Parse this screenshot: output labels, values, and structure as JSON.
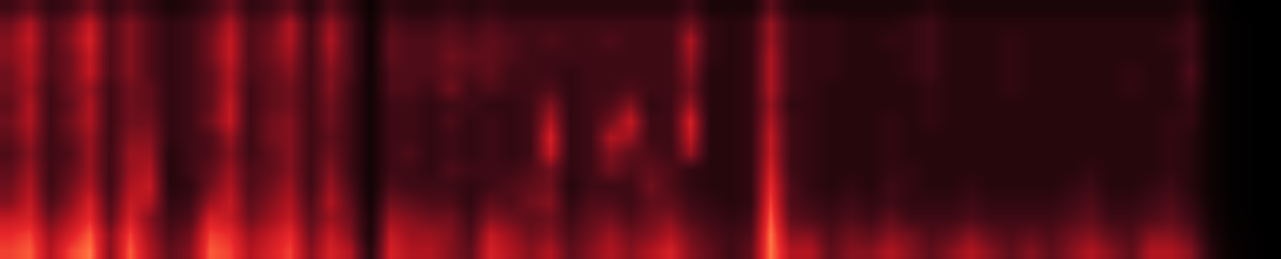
{
  "chart_data": {
    "type": "heatmap",
    "tick_labels": false,
    "color_range": [
      0,
      1
    ],
    "cells": [
      [
        0.8,
        0.85,
        0.6,
        0.8,
        0.9,
        0.5,
        0.85,
        0.6,
        0.4,
        0.5,
        0.85,
        0.8,
        0.6,
        0.7,
        0.8,
        0.5,
        0.7,
        0.6,
        0.2,
        0.7,
        0.6,
        0.6,
        0.5,
        0.4,
        0.7,
        0.6,
        0.5,
        0.6,
        0.4,
        0.5,
        0.6,
        0.5,
        0.6,
        0.7,
        0.5,
        0.4,
        0.3,
        0.4,
        0.9,
        0.6,
        0.6,
        0.4,
        0.5,
        0.5,
        0.6,
        0.5,
        0.4,
        0.5,
        0.6,
        0.5,
        0.4,
        0.5,
        0.4,
        0.5,
        0.6,
        0.5,
        0.4,
        0.6,
        0.6,
        0.5,
        0.2,
        0.05,
        0.02,
        0.0
      ],
      [
        0.75,
        0.8,
        0.55,
        0.7,
        0.85,
        0.5,
        0.8,
        0.55,
        0.35,
        0.45,
        0.8,
        0.75,
        0.55,
        0.65,
        0.75,
        0.45,
        0.65,
        0.5,
        0.15,
        0.65,
        0.55,
        0.55,
        0.5,
        0.35,
        0.65,
        0.55,
        0.45,
        0.5,
        0.35,
        0.45,
        0.55,
        0.45,
        0.5,
        0.6,
        0.45,
        0.35,
        0.3,
        0.35,
        0.9,
        0.5,
        0.5,
        0.35,
        0.45,
        0.4,
        0.5,
        0.45,
        0.35,
        0.4,
        0.5,
        0.4,
        0.35,
        0.4,
        0.35,
        0.45,
        0.5,
        0.4,
        0.35,
        0.5,
        0.5,
        0.4,
        0.15,
        0.04,
        0.02,
        0.0
      ],
      [
        0.65,
        0.7,
        0.45,
        0.6,
        0.75,
        0.4,
        0.7,
        0.5,
        0.3,
        0.35,
        0.7,
        0.65,
        0.45,
        0.55,
        0.65,
        0.4,
        0.55,
        0.45,
        0.15,
        0.55,
        0.5,
        0.45,
        0.45,
        0.3,
        0.5,
        0.45,
        0.4,
        0.45,
        0.3,
        0.4,
        0.45,
        0.35,
        0.45,
        0.5,
        0.35,
        0.3,
        0.25,
        0.3,
        0.85,
        0.4,
        0.35,
        0.3,
        0.35,
        0.3,
        0.4,
        0.3,
        0.3,
        0.3,
        0.35,
        0.3,
        0.3,
        0.3,
        0.3,
        0.35,
        0.4,
        0.3,
        0.3,
        0.35,
        0.4,
        0.3,
        0.12,
        0.03,
        0.01,
        0.0
      ],
      [
        0.5,
        0.65,
        0.35,
        0.5,
        0.7,
        0.35,
        0.65,
        0.6,
        0.25,
        0.3,
        0.55,
        0.65,
        0.4,
        0.5,
        0.6,
        0.35,
        0.6,
        0.4,
        0.12,
        0.45,
        0.4,
        0.35,
        0.35,
        0.25,
        0.4,
        0.35,
        0.45,
        0.5,
        0.25,
        0.35,
        0.35,
        0.3,
        0.4,
        0.4,
        0.3,
        0.25,
        0.2,
        0.25,
        0.8,
        0.35,
        0.3,
        0.25,
        0.3,
        0.25,
        0.3,
        0.25,
        0.25,
        0.25,
        0.3,
        0.25,
        0.25,
        0.25,
        0.25,
        0.3,
        0.35,
        0.25,
        0.25,
        0.3,
        0.35,
        0.25,
        0.1,
        0.02,
        0.01,
        0.0
      ],
      [
        0.45,
        0.6,
        0.3,
        0.45,
        0.6,
        0.3,
        0.6,
        0.65,
        0.2,
        0.25,
        0.45,
        0.6,
        0.35,
        0.45,
        0.55,
        0.3,
        0.55,
        0.35,
        0.1,
        0.35,
        0.3,
        0.3,
        0.3,
        0.25,
        0.3,
        0.35,
        0.4,
        0.45,
        0.2,
        0.3,
        0.3,
        0.3,
        0.45,
        0.35,
        0.25,
        0.2,
        0.2,
        0.25,
        0.75,
        0.35,
        0.25,
        0.2,
        0.25,
        0.2,
        0.3,
        0.25,
        0.2,
        0.2,
        0.25,
        0.2,
        0.2,
        0.2,
        0.2,
        0.25,
        0.3,
        0.2,
        0.2,
        0.25,
        0.3,
        0.2,
        0.08,
        0.02,
        0.01,
        0.0
      ],
      [
        0.4,
        0.55,
        0.3,
        0.4,
        0.55,
        0.3,
        0.55,
        0.6,
        0.2,
        0.3,
        0.4,
        0.55,
        0.35,
        0.4,
        0.5,
        0.3,
        0.5,
        0.3,
        0.1,
        0.3,
        0.3,
        0.25,
        0.35,
        0.3,
        0.3,
        0.3,
        0.35,
        0.45,
        0.25,
        0.3,
        0.45,
        0.35,
        0.4,
        0.35,
        0.25,
        0.2,
        0.2,
        0.25,
        0.7,
        0.3,
        0.25,
        0.2,
        0.2,
        0.2,
        0.25,
        0.25,
        0.2,
        0.2,
        0.2,
        0.2,
        0.2,
        0.2,
        0.2,
        0.2,
        0.25,
        0.2,
        0.2,
        0.2,
        0.25,
        0.2,
        0.08,
        0.02,
        0.01,
        0.0
      ],
      [
        0.35,
        0.5,
        0.3,
        0.35,
        0.55,
        0.3,
        0.55,
        0.55,
        0.2,
        0.3,
        0.35,
        0.5,
        0.3,
        0.4,
        0.5,
        0.3,
        0.45,
        0.3,
        0.1,
        0.3,
        0.35,
        0.25,
        0.3,
        0.25,
        0.3,
        0.25,
        0.3,
        0.65,
        0.25,
        0.3,
        0.5,
        0.4,
        0.35,
        0.3,
        0.55,
        0.2,
        0.2,
        0.25,
        0.65,
        0.3,
        0.25,
        0.2,
        0.2,
        0.2,
        0.25,
        0.2,
        0.2,
        0.2,
        0.2,
        0.2,
        0.2,
        0.2,
        0.2,
        0.2,
        0.2,
        0.2,
        0.2,
        0.2,
        0.25,
        0.2,
        0.08,
        0.02,
        0.01,
        0.0
      ],
      [
        0.4,
        0.55,
        0.3,
        0.4,
        0.55,
        0.3,
        0.5,
        0.5,
        0.25,
        0.3,
        0.35,
        0.55,
        0.3,
        0.45,
        0.5,
        0.3,
        0.4,
        0.3,
        0.1,
        0.3,
        0.3,
        0.25,
        0.3,
        0.25,
        0.3,
        0.25,
        0.3,
        0.7,
        0.25,
        0.3,
        0.6,
        0.55,
        0.3,
        0.3,
        0.65,
        0.2,
        0.2,
        0.25,
        0.65,
        0.3,
        0.25,
        0.2,
        0.2,
        0.2,
        0.25,
        0.2,
        0.2,
        0.2,
        0.2,
        0.2,
        0.2,
        0.2,
        0.2,
        0.2,
        0.2,
        0.2,
        0.2,
        0.2,
        0.25,
        0.2,
        0.08,
        0.02,
        0.01,
        0.0
      ],
      [
        0.45,
        0.6,
        0.3,
        0.45,
        0.6,
        0.3,
        0.45,
        0.45,
        0.25,
        0.3,
        0.45,
        0.65,
        0.3,
        0.45,
        0.5,
        0.3,
        0.45,
        0.3,
        0.1,
        0.3,
        0.3,
        0.25,
        0.35,
        0.25,
        0.3,
        0.25,
        0.3,
        0.6,
        0.25,
        0.3,
        0.45,
        0.65,
        0.3,
        0.3,
        0.7,
        0.2,
        0.2,
        0.25,
        0.6,
        0.3,
        0.25,
        0.2,
        0.2,
        0.2,
        0.25,
        0.2,
        0.25,
        0.2,
        0.2,
        0.2,
        0.2,
        0.2,
        0.2,
        0.2,
        0.2,
        0.2,
        0.2,
        0.2,
        0.25,
        0.25,
        0.08,
        0.02,
        0.01,
        0.0
      ],
      [
        0.4,
        0.6,
        0.3,
        0.4,
        0.6,
        0.3,
        0.45,
        0.4,
        0.25,
        0.3,
        0.4,
        0.65,
        0.3,
        0.4,
        0.45,
        0.3,
        0.45,
        0.3,
        0.1,
        0.3,
        0.3,
        0.25,
        0.3,
        0.3,
        0.25,
        0.25,
        0.3,
        0.5,
        0.25,
        0.3,
        0.35,
        0.5,
        0.25,
        0.3,
        0.55,
        0.2,
        0.2,
        0.25,
        0.55,
        0.25,
        0.25,
        0.2,
        0.2,
        0.2,
        0.2,
        0.2,
        0.25,
        0.2,
        0.2,
        0.2,
        0.2,
        0.2,
        0.2,
        0.2,
        0.2,
        0.2,
        0.2,
        0.2,
        0.2,
        0.25,
        0.08,
        0.02,
        0.01,
        0.0
      ],
      [
        0.45,
        0.55,
        0.3,
        0.45,
        0.55,
        0.3,
        0.45,
        0.4,
        0.25,
        0.3,
        0.4,
        0.6,
        0.3,
        0.4,
        0.45,
        0.3,
        0.5,
        0.3,
        0.1,
        0.35,
        0.35,
        0.3,
        0.45,
        0.3,
        0.35,
        0.3,
        0.3,
        0.35,
        0.25,
        0.3,
        0.3,
        0.35,
        0.3,
        0.3,
        0.45,
        0.2,
        0.2,
        0.25,
        0.6,
        0.3,
        0.25,
        0.2,
        0.2,
        0.2,
        0.2,
        0.2,
        0.25,
        0.2,
        0.2,
        0.2,
        0.25,
        0.2,
        0.2,
        0.2,
        0.2,
        0.2,
        0.25,
        0.2,
        0.2,
        0.3,
        0.08,
        0.02,
        0.01,
        0.0
      ],
      [
        0.45,
        0.6,
        0.35,
        0.45,
        0.65,
        0.35,
        0.5,
        0.35,
        0.25,
        0.3,
        0.4,
        0.6,
        0.35,
        0.4,
        0.5,
        0.3,
        0.5,
        0.35,
        0.1,
        0.35,
        0.35,
        0.35,
        0.4,
        0.35,
        0.4,
        0.3,
        0.3,
        0.3,
        0.25,
        0.3,
        0.3,
        0.3,
        0.3,
        0.3,
        0.5,
        0.2,
        0.2,
        0.25,
        0.6,
        0.3,
        0.25,
        0.25,
        0.2,
        0.2,
        0.2,
        0.25,
        0.3,
        0.2,
        0.2,
        0.2,
        0.25,
        0.2,
        0.2,
        0.2,
        0.2,
        0.2,
        0.25,
        0.2,
        0.2,
        0.35,
        0.08,
        0.02,
        0.01,
        0.0
      ],
      [
        0.5,
        0.6,
        0.35,
        0.45,
        0.65,
        0.35,
        0.5,
        0.35,
        0.25,
        0.3,
        0.45,
        0.65,
        0.35,
        0.45,
        0.55,
        0.3,
        0.55,
        0.35,
        0.1,
        0.4,
        0.35,
        0.35,
        0.45,
        0.4,
        0.4,
        0.35,
        0.3,
        0.3,
        0.3,
        0.3,
        0.3,
        0.3,
        0.3,
        0.3,
        0.55,
        0.25,
        0.2,
        0.25,
        0.6,
        0.3,
        0.25,
        0.25,
        0.2,
        0.2,
        0.2,
        0.25,
        0.3,
        0.2,
        0.2,
        0.2,
        0.25,
        0.2,
        0.2,
        0.2,
        0.2,
        0.2,
        0.2,
        0.2,
        0.2,
        0.3,
        0.08,
        0.02,
        0.01,
        0.0
      ],
      [
        0.5,
        0.65,
        0.35,
        0.5,
        0.7,
        0.35,
        0.5,
        0.35,
        0.25,
        0.3,
        0.45,
        0.65,
        0.35,
        0.45,
        0.6,
        0.3,
        0.6,
        0.35,
        0.1,
        0.4,
        0.35,
        0.35,
        0.4,
        0.35,
        0.4,
        0.35,
        0.3,
        0.35,
        0.3,
        0.3,
        0.35,
        0.3,
        0.3,
        0.3,
        0.6,
        0.25,
        0.2,
        0.25,
        0.55,
        0.3,
        0.25,
        0.25,
        0.2,
        0.2,
        0.25,
        0.25,
        0.3,
        0.2,
        0.2,
        0.2,
        0.25,
        0.2,
        0.2,
        0.2,
        0.2,
        0.2,
        0.2,
        0.2,
        0.25,
        0.3,
        0.08,
        0.02,
        0.01,
        0.0
      ],
      [
        0.45,
        0.6,
        0.35,
        0.45,
        0.65,
        0.35,
        0.5,
        0.35,
        0.25,
        0.3,
        0.4,
        0.6,
        0.35,
        0.4,
        0.6,
        0.3,
        0.55,
        0.35,
        0.1,
        0.35,
        0.3,
        0.3,
        0.35,
        0.3,
        0.35,
        0.3,
        0.3,
        0.3,
        0.3,
        0.3,
        0.3,
        0.3,
        0.3,
        0.3,
        0.45,
        0.25,
        0.2,
        0.25,
        0.55,
        0.3,
        0.25,
        0.25,
        0.2,
        0.2,
        0.2,
        0.25,
        0.3,
        0.2,
        0.2,
        0.2,
        0.2,
        0.2,
        0.2,
        0.2,
        0.2,
        0.2,
        0.2,
        0.2,
        0.2,
        0.3,
        0.08,
        0.02,
        0.01,
        0.0
      ],
      [
        0.3,
        0.4,
        0.25,
        0.3,
        0.45,
        0.25,
        0.35,
        0.25,
        0.15,
        0.2,
        0.3,
        0.45,
        0.25,
        0.3,
        0.4,
        0.2,
        0.4,
        0.25,
        0.08,
        0.25,
        0.2,
        0.2,
        0.25,
        0.2,
        0.25,
        0.2,
        0.2,
        0.2,
        0.2,
        0.2,
        0.2,
        0.2,
        0.2,
        0.2,
        0.3,
        0.15,
        0.15,
        0.15,
        0.4,
        0.2,
        0.15,
        0.15,
        0.15,
        0.15,
        0.15,
        0.15,
        0.2,
        0.15,
        0.15,
        0.15,
        0.15,
        0.15,
        0.15,
        0.15,
        0.15,
        0.15,
        0.15,
        0.15,
        0.15,
        0.2,
        0.05,
        0.01,
        0.0,
        0.0
      ]
    ]
  }
}
